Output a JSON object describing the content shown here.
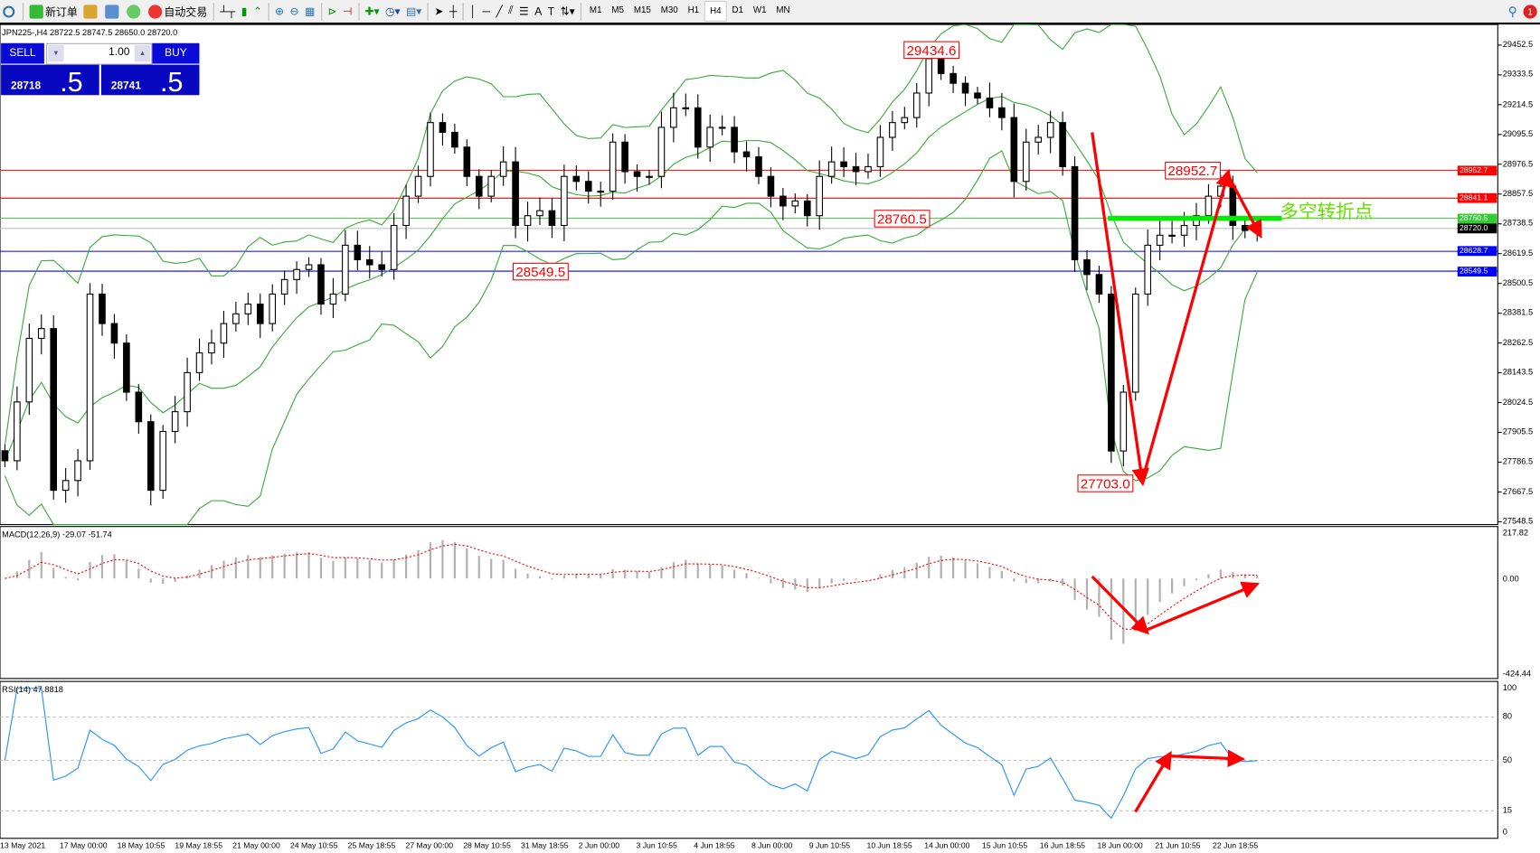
{
  "toolbar": {
    "new_order": "新订单",
    "auto_trading": "自动交易",
    "timeframes": [
      "M1",
      "M5",
      "M15",
      "M30",
      "H1",
      "H4",
      "D1",
      "W1",
      "MN"
    ],
    "active_timeframe": "H4",
    "notification_count": "1"
  },
  "symbol_info": "JPN225-,H4  28722.5 28747.5 28650.0 28720.0",
  "trade_panel": {
    "sell_label": "SELL",
    "buy_label": "BUY",
    "lot": "1.00",
    "sell_main": "28718",
    "sell_last": ".5",
    "buy_main": "28741",
    "buy_last": ".5"
  },
  "price_axis": [
    "29452.5",
    "29333.5",
    "29214.5",
    "29095.5",
    "28976.5",
    "28857.5",
    "28738.5",
    "28619.5",
    "28500.5",
    "28381.5",
    "28262.5",
    "28143.5",
    "28024.5",
    "27905.5",
    "27786.5",
    "27667.5",
    "27548.5"
  ],
  "levels": [
    {
      "price": "28952.7",
      "color": "#ff0000"
    },
    {
      "price": "28841.1",
      "color": "#ff0000"
    },
    {
      "price": "28760.5",
      "color": "#33cc33"
    },
    {
      "price": "28720.0",
      "color": "#000000"
    },
    {
      "price": "28628.7",
      "color": "#0000ff"
    },
    {
      "price": "28549.5",
      "color": "#0000ff"
    }
  ],
  "annotations": {
    "high": "29434.6",
    "low1": "28549.5",
    "mid": "28760.5",
    "recent_high": "28952.7",
    "low": "27703.0",
    "pivot_text": "多空转折点"
  },
  "macd": {
    "label": "MACD(12,26,9) -29.07 -51.74",
    "max": "217.82",
    "zero": "0.00",
    "min": "-424.44"
  },
  "rsi": {
    "label": "RSI(14) 47.8818",
    "ticks": [
      "100",
      "80",
      "50",
      "15",
      "0"
    ]
  },
  "time_axis": [
    "13 May 2021",
    "17 May 00:00",
    "18 May 10:55",
    "19 May 18:55",
    "21 May 00:00",
    "24 May 10:55",
    "25 May 18:55",
    "27 May 00:00",
    "28 May 10:55",
    "31 May 18:55",
    "2 Jun 00:00",
    "3 Jun 10:55",
    "4 Jun 18:55",
    "8 Jun 00:00",
    "9 Jun 10:55",
    "10 Jun 18:55",
    "14 Jun 00:00",
    "15 Jun 10:55",
    "16 Jun 18:55",
    "18 Jun 00:00",
    "21 Jun 10:55",
    "22 Jun 18:55"
  ],
  "chart_data": {
    "type": "candlestick",
    "symbol": "JPN225-",
    "timeframe": "H4",
    "ylim": [
      27548.5,
      29452.5
    ],
    "closes": [
      27792,
      28027,
      28281,
      28320,
      27674,
      27713,
      27792,
      28458,
      28340,
      28262,
      28066,
      27948,
      27674,
      27909,
      27988,
      28144,
      28223,
      28262,
      28340,
      28379,
      28418,
      28340,
      28458,
      28516,
      28556,
      28575,
      28418,
      28458,
      28653,
      28595,
      28575,
      28556,
      28732,
      28849,
      28928,
      29143,
      29104,
      29045,
      28928,
      28849,
      28928,
      28986,
      28732,
      28771,
      28791,
      28732,
      28928,
      28908,
      28869,
      28869,
      29065,
      28947,
      28928,
      28928,
      29124,
      29202,
      29202,
      29045,
      29124,
      29124,
      29026,
      29006,
      28928,
      28849,
      28810,
      28830,
      28771,
      28928,
      28986,
      28967,
      28947,
      28967,
      29084,
      29143,
      29163,
      29261,
      29398,
      29339,
      29300,
      29261,
      29241,
      29202,
      29163,
      28908,
      29065,
      29084,
      29143,
      28967,
      28595,
      28536,
      28458,
      27831,
      28066,
      28458,
      28653,
      28693,
      28693,
      28732,
      28771,
      28849,
      28889,
      28732,
      28712,
      28720
    ],
    "indicators": [
      "Bollinger Bands",
      "MACD(12,26,9)",
      "RSI(14)"
    ],
    "colors": {
      "bands": "#33aa33",
      "macd_hist": "#b0b0b0",
      "macd_signal": "#ff0000",
      "rsi": "#1e90ff",
      "arrows": "#ff0000"
    }
  }
}
